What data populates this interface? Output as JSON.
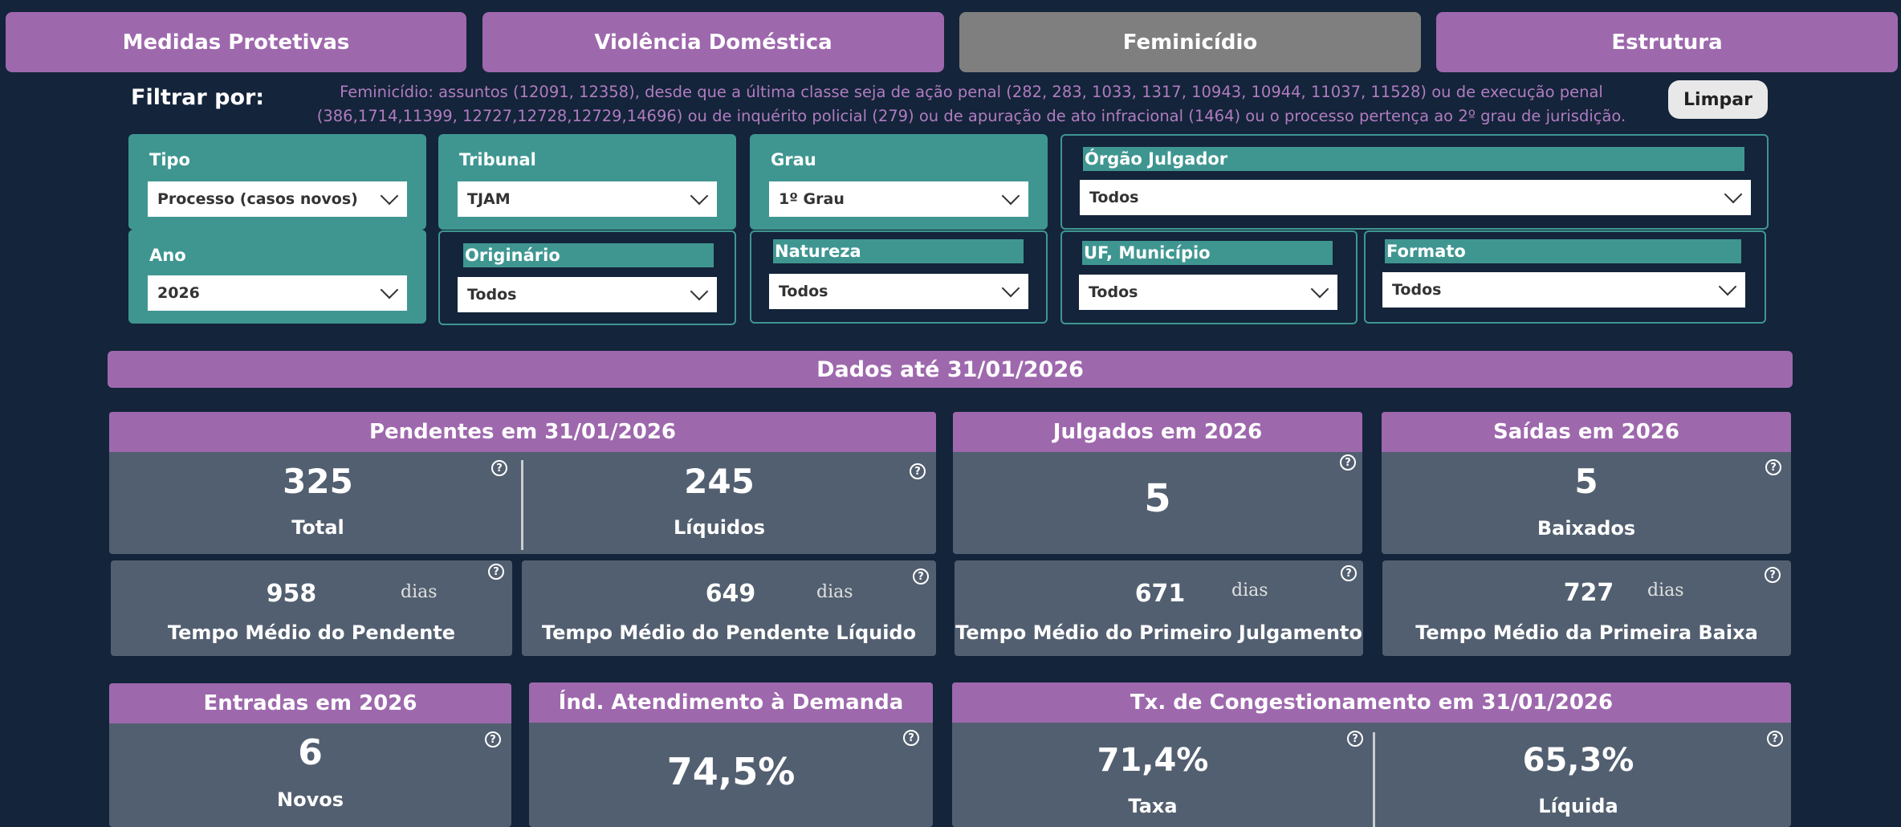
{
  "tabs": [
    {
      "label": "Medidas Protetivas"
    },
    {
      "label": "Violência Doméstica"
    },
    {
      "label": "Feminicídio"
    },
    {
      "label": "Estrutura"
    }
  ],
  "filter": {
    "label": "Filtrar por:",
    "description": "Feminicídio: assuntos (12091, 12358), desde que a última classe seja de ação penal (282, 283, 1033, 1317, 10943, 10944, 11037, 11528) ou de execução penal (386,1714,11399, 12727,12728,12729,14696) ou de inquérito policial (279) ou de apuração de ato infracional (1464) ou o processo pertença ao 2º grau de jurisdição.",
    "clear_button": "Limpar"
  },
  "slicers": {
    "tipo": {
      "title": "Tipo",
      "value": "Processo (casos novos)"
    },
    "tribunal": {
      "title": "Tribunal",
      "value": "TJAM"
    },
    "grau": {
      "title": "Grau",
      "value": "1º Grau"
    },
    "orgao": {
      "title": "Órgão Julgador",
      "value": "Todos"
    },
    "ano": {
      "title": "Ano",
      "value": "2026"
    },
    "originario": {
      "title": "Originário",
      "value": "Todos"
    },
    "natureza": {
      "title": "Natureza",
      "value": "Todos"
    },
    "uf": {
      "title": "UF, Município",
      "value": "Todos"
    },
    "formato": {
      "title": "Formato",
      "value": "Todos"
    }
  },
  "banner": "Dados até 31/01/2026",
  "pendentes": {
    "title": "Pendentes em 31/01/2026",
    "total_value": "325",
    "total_label": "Total",
    "liquidos_value": "245",
    "liquidos_label": "Líquidos"
  },
  "julgados": {
    "title": "Julgados em 2026",
    "value": "5"
  },
  "saidas": {
    "title": "Saídas em 2026",
    "value": "5",
    "label": "Baixados"
  },
  "tempos": [
    {
      "value": "958",
      "unit": "dias",
      "label": "Tempo Médio do Pendente"
    },
    {
      "value": "649",
      "unit": "dias",
      "label": "Tempo Médio do Pendente Líquido"
    },
    {
      "value": "671",
      "unit": "dias",
      "label": "Tempo Médio do Primeiro Julgamento"
    },
    {
      "value": "727",
      "unit": "dias",
      "label": "Tempo Médio da Primeira Baixa"
    }
  ],
  "entradas": {
    "title": "Entradas em 2026",
    "value": "6",
    "label": "Novos"
  },
  "atendimento": {
    "title": "Índ. Atendimento à Demanda",
    "value": "74,5%"
  },
  "congestionamento": {
    "title": "Tx. de Congestionamento em 31/01/2026",
    "taxa_value": "71,4%",
    "taxa_label": "Taxa",
    "liquida_value": "65,3%",
    "liquida_label": "Líquida"
  },
  "help_glyph": "?",
  "colors": {
    "background": "#14243a",
    "purple": "#9e68ad",
    "teal": "#3f9691",
    "card": "#525f70",
    "active_tab": "#7f7f7f"
  }
}
